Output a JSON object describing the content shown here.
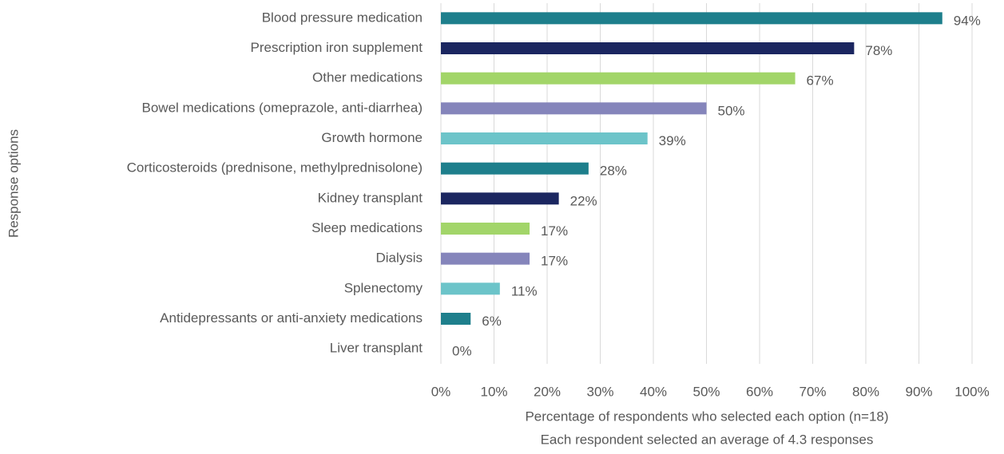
{
  "chart_data": {
    "type": "barh",
    "x_label": "Percentage of respondents who selected each option (n=18)",
    "subtitle": "Each respondent selected an average of 4.3 responses",
    "y_label": "Response options",
    "categories": [
      "Blood pressure medication",
      "Prescription iron supplement",
      "Other medications",
      "Bowel medications (omeprazole, anti-diarrhea)",
      "Growth hormone",
      "Corticosteroids (prednisone, methylprednisolone)",
      "Kidney transplant",
      "Sleep medications",
      "Dialysis",
      "Splenectomy",
      "Antidepressants or anti-anxiety medications",
      "Liver transplant"
    ],
    "values": [
      94.4,
      77.8,
      66.7,
      50,
      38.9,
      27.8,
      22.2,
      16.7,
      16.7,
      11.1,
      5.6,
      0
    ],
    "value_labels": [
      "94%",
      "78%",
      "67%",
      "50%",
      "39%",
      "28%",
      "22%",
      "17%",
      "17%",
      "11%",
      "6%",
      "0%"
    ],
    "colors": [
      "#1e7f8c",
      "#1b2660",
      "#a2d569",
      "#8585bb",
      "#6cc4c9",
      "#1e7f8c",
      "#1b2660",
      "#a2d569",
      "#8585bb",
      "#6cc4c9",
      "#1e7f8c",
      "#1b2660"
    ],
    "xlim": [
      0,
      100
    ],
    "xticks": [
      {
        "value": 0,
        "label": "0%"
      },
      {
        "value": 10,
        "label": "10%"
      },
      {
        "value": 20,
        "label": "20%"
      },
      {
        "value": 30,
        "label": "30%"
      },
      {
        "value": 40,
        "label": "40%"
      },
      {
        "value": 50,
        "label": "50%"
      },
      {
        "value": 60,
        "label": "60%"
      },
      {
        "value": 70,
        "label": "70%"
      },
      {
        "value": 80,
        "label": "80%"
      },
      {
        "value": 90,
        "label": "90%"
      },
      {
        "value": 100,
        "label": "100%"
      }
    ],
    "grid": true
  }
}
